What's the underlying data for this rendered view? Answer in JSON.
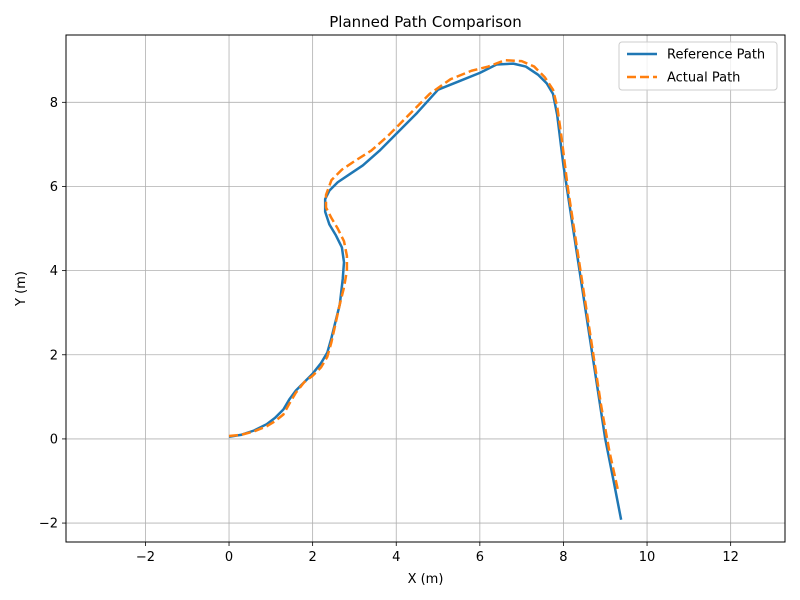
{
  "chart_data": {
    "type": "line",
    "title": "Planned Path Comparison",
    "xlabel": "X (m)",
    "ylabel": "Y (m)",
    "xlim": [
      -3.9,
      13.3
    ],
    "ylim": [
      -2.45,
      9.6
    ],
    "xticks": [
      -2,
      0,
      2,
      4,
      6,
      8,
      10,
      12
    ],
    "yticks": [
      -2,
      0,
      2,
      4,
      6,
      8
    ],
    "xtick_labels": [
      "−2",
      "0",
      "2",
      "4",
      "6",
      "8",
      "10",
      "12"
    ],
    "ytick_labels": [
      "−2",
      "0",
      "2",
      "4",
      "6",
      "8"
    ],
    "grid": true,
    "legend_position": "top-right",
    "series": [
      {
        "name": "Reference Path",
        "color": "#1f77b4",
        "style": "solid",
        "x": [
          0.0,
          0.3,
          0.6,
          0.9,
          1.1,
          1.3,
          1.45,
          1.6,
          1.8,
          2.0,
          2.2,
          2.35,
          2.45,
          2.55,
          2.65,
          2.72,
          2.75,
          2.7,
          2.55,
          2.4,
          2.3,
          2.3,
          2.4,
          2.6,
          2.9,
          3.2,
          3.6,
          4.0,
          4.5,
          5.0,
          5.5,
          6.0,
          6.4,
          6.8,
          7.1,
          7.4,
          7.6,
          7.75,
          7.85,
          8.0,
          8.2,
          8.4,
          8.6,
          8.8,
          9.0,
          9.2,
          9.38
        ],
        "y": [
          0.05,
          0.1,
          0.2,
          0.35,
          0.5,
          0.7,
          0.95,
          1.15,
          1.35,
          1.55,
          1.8,
          2.05,
          2.4,
          2.8,
          3.2,
          3.8,
          4.2,
          4.55,
          4.85,
          5.1,
          5.4,
          5.7,
          5.9,
          6.1,
          6.3,
          6.5,
          6.85,
          7.25,
          7.75,
          8.3,
          8.5,
          8.7,
          8.9,
          8.92,
          8.85,
          8.65,
          8.45,
          8.2,
          7.7,
          6.5,
          5.2,
          3.9,
          2.6,
          1.3,
          0.0,
          -1.0,
          -1.92
        ]
      },
      {
        "name": "Actual Path",
        "color": "#ff7f0e",
        "style": "dashed",
        "x": [
          0.0,
          0.3,
          0.6,
          0.9,
          1.1,
          1.3,
          1.45,
          1.6,
          1.8,
          2.0,
          2.2,
          2.35,
          2.45,
          2.55,
          2.65,
          2.75,
          2.82,
          2.82,
          2.75,
          2.6,
          2.45,
          2.32,
          2.32,
          2.45,
          2.7,
          3.0,
          3.4,
          3.8,
          4.3,
          4.8,
          5.3,
          5.8,
          6.2,
          6.6,
          7.0,
          7.3,
          7.55,
          7.75,
          7.85,
          7.95,
          8.1,
          8.3,
          8.5,
          8.7,
          8.9,
          9.1,
          9.3
        ],
        "y": [
          0.07,
          0.1,
          0.18,
          0.3,
          0.42,
          0.58,
          0.85,
          1.1,
          1.35,
          1.5,
          1.7,
          1.95,
          2.3,
          2.75,
          3.2,
          3.6,
          4.0,
          4.35,
          4.7,
          5.0,
          5.25,
          5.5,
          5.8,
          6.15,
          6.4,
          6.6,
          6.85,
          7.2,
          7.7,
          8.2,
          8.55,
          8.75,
          8.85,
          9.0,
          8.98,
          8.85,
          8.6,
          8.3,
          7.9,
          7.2,
          6.0,
          4.7,
          3.4,
          2.1,
          0.8,
          -0.3,
          -1.2
        ]
      }
    ]
  }
}
